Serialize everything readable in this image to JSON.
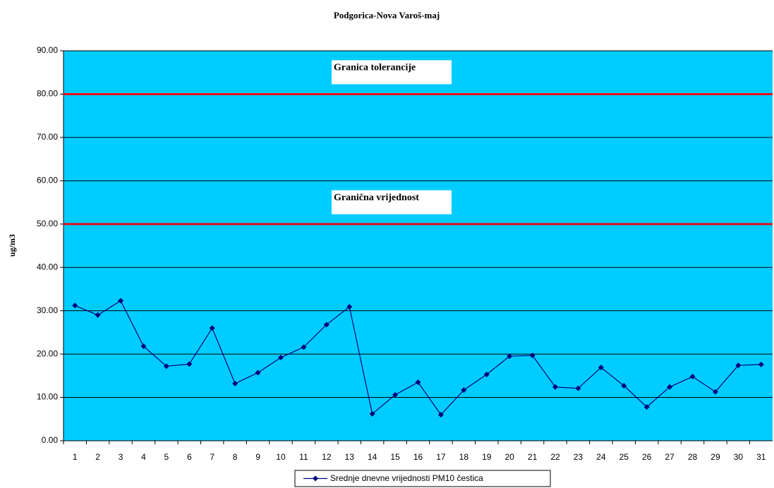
{
  "chart_data": {
    "type": "line",
    "title": "Podgorica-Nova Varoš-maj",
    "y_label": "ug/m3",
    "categories": [
      "1",
      "2",
      "3",
      "4",
      "5",
      "6",
      "7",
      "8",
      "9",
      "10",
      "11",
      "12",
      "13",
      "14",
      "15",
      "16",
      "17",
      "18",
      "19",
      "20",
      "21",
      "22",
      "23",
      "24",
      "25",
      "26",
      "27",
      "28",
      "29",
      "30",
      "31"
    ],
    "series": [
      {
        "name": "Srednje dnevne vrijednosti PM10 čestica",
        "color": "#000080",
        "values": [
          31.2,
          29.0,
          32.3,
          21.8,
          17.2,
          17.7,
          26.0,
          13.2,
          15.7,
          19.2,
          21.6,
          26.8,
          30.9,
          6.2,
          10.6,
          13.5,
          6.0,
          11.7,
          15.3,
          19.5,
          19.7,
          12.4,
          12.1,
          16.9,
          12.7,
          7.8,
          12.4,
          14.8,
          11.3,
          17.4,
          17.6
        ]
      }
    ],
    "reference_lines": [
      {
        "value": 80,
        "label": "Granica tolerancije",
        "color": "#e0121b"
      },
      {
        "value": 50,
        "label": "Granična vrijednost",
        "color": "#e0121b"
      }
    ],
    "ylim": [
      0,
      90
    ],
    "yticks": [
      {
        "value": 0,
        "label": "0.00"
      },
      {
        "value": 10,
        "label": "10.00"
      },
      {
        "value": 20,
        "label": "20.00"
      },
      {
        "value": 30,
        "label": "30.00"
      },
      {
        "value": 40,
        "label": "40.00"
      },
      {
        "value": 50,
        "label": "50.00"
      },
      {
        "value": 60,
        "label": "60.00"
      },
      {
        "value": 70,
        "label": "70.00"
      },
      {
        "value": 80,
        "label": "80.00"
      },
      {
        "value": 90,
        "label": "90.00"
      }
    ],
    "grid": true,
    "plot_background": "#00ccff",
    "legend": "bottom"
  }
}
